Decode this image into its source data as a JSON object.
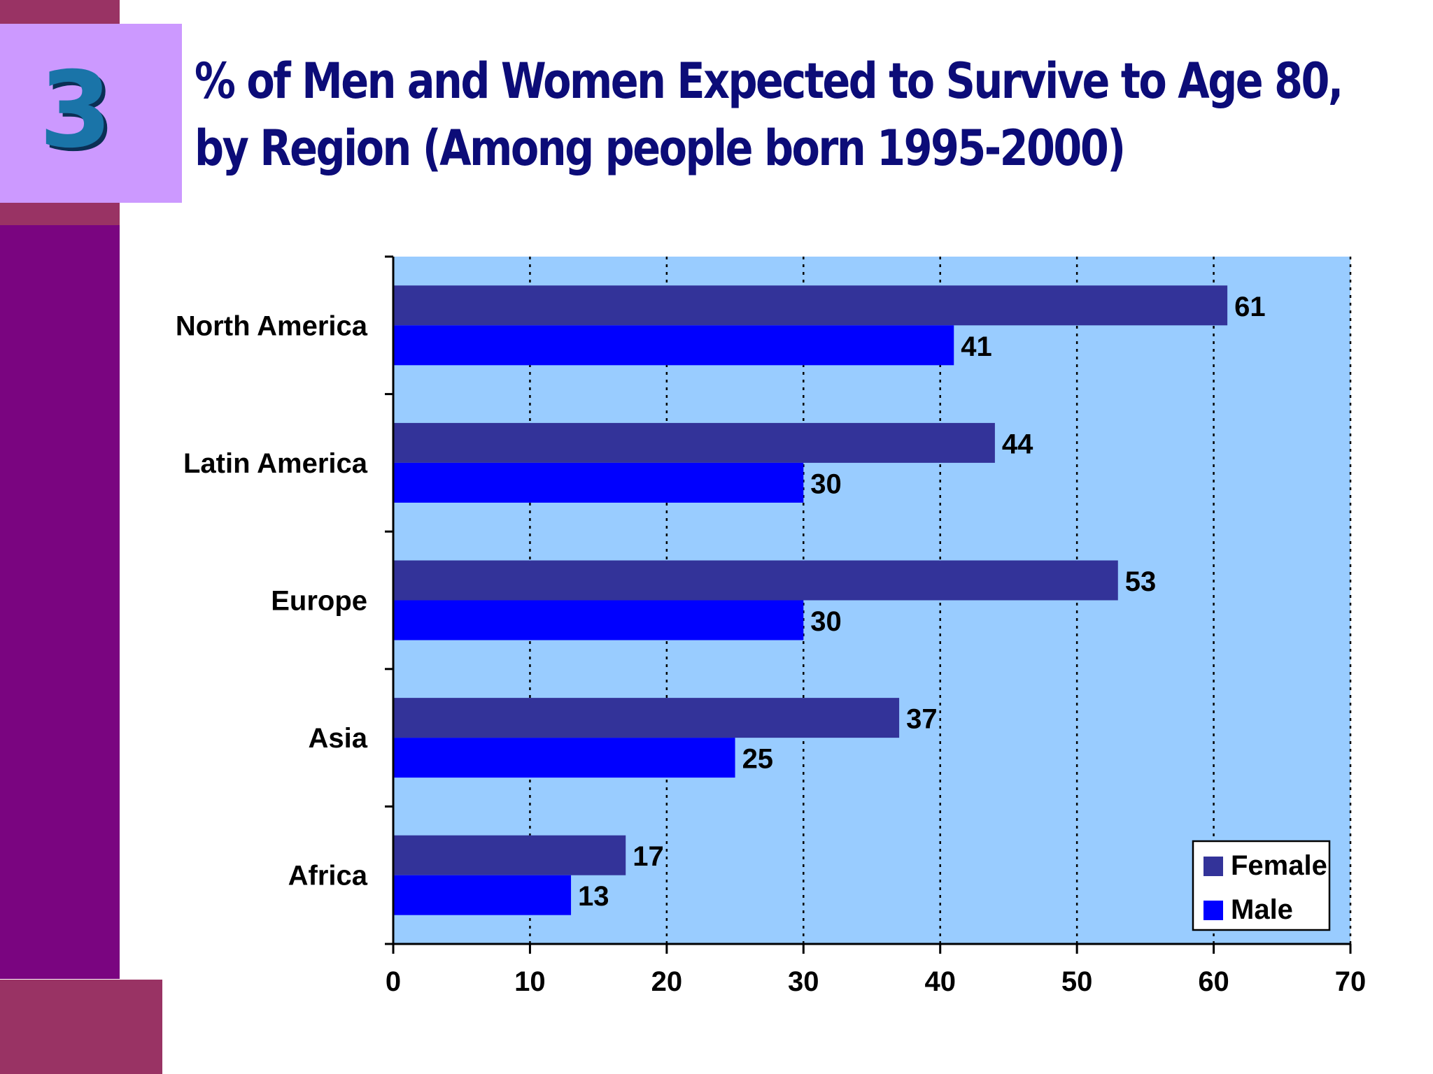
{
  "slide": {
    "number": "3",
    "title_line1": "% of Men and Women Expected to Survive to Age 80,",
    "title_line2": "by Region (Among people born 1995-2000)"
  },
  "colors": {
    "plot_background": "#99ccff",
    "female": "#333399",
    "male": "#0000ff",
    "title": "#0c0c78",
    "side_purple": "#7a0580",
    "side_rose": "#993364",
    "number_box": "#cc99ff"
  },
  "chart_data": {
    "type": "bar",
    "orientation": "horizontal",
    "title": "% of Men and Women Expected to Survive to Age 80, by Region (Among people born 1995-2000)",
    "categories": [
      "North America",
      "Latin America",
      "Europe",
      "Asia",
      "Africa"
    ],
    "series": [
      {
        "name": "Female",
        "values": [
          61,
          44,
          53,
          37,
          17
        ]
      },
      {
        "name": "Male",
        "values": [
          41,
          30,
          30,
          25,
          13
        ]
      }
    ],
    "xlim": [
      0,
      70
    ],
    "xticks": [
      0,
      10,
      20,
      30,
      40,
      50,
      60,
      70
    ],
    "grid": "vertical dotted",
    "data_labels": true,
    "legend": {
      "position": "bottom-right",
      "entries": [
        "Female",
        "Male"
      ]
    }
  }
}
